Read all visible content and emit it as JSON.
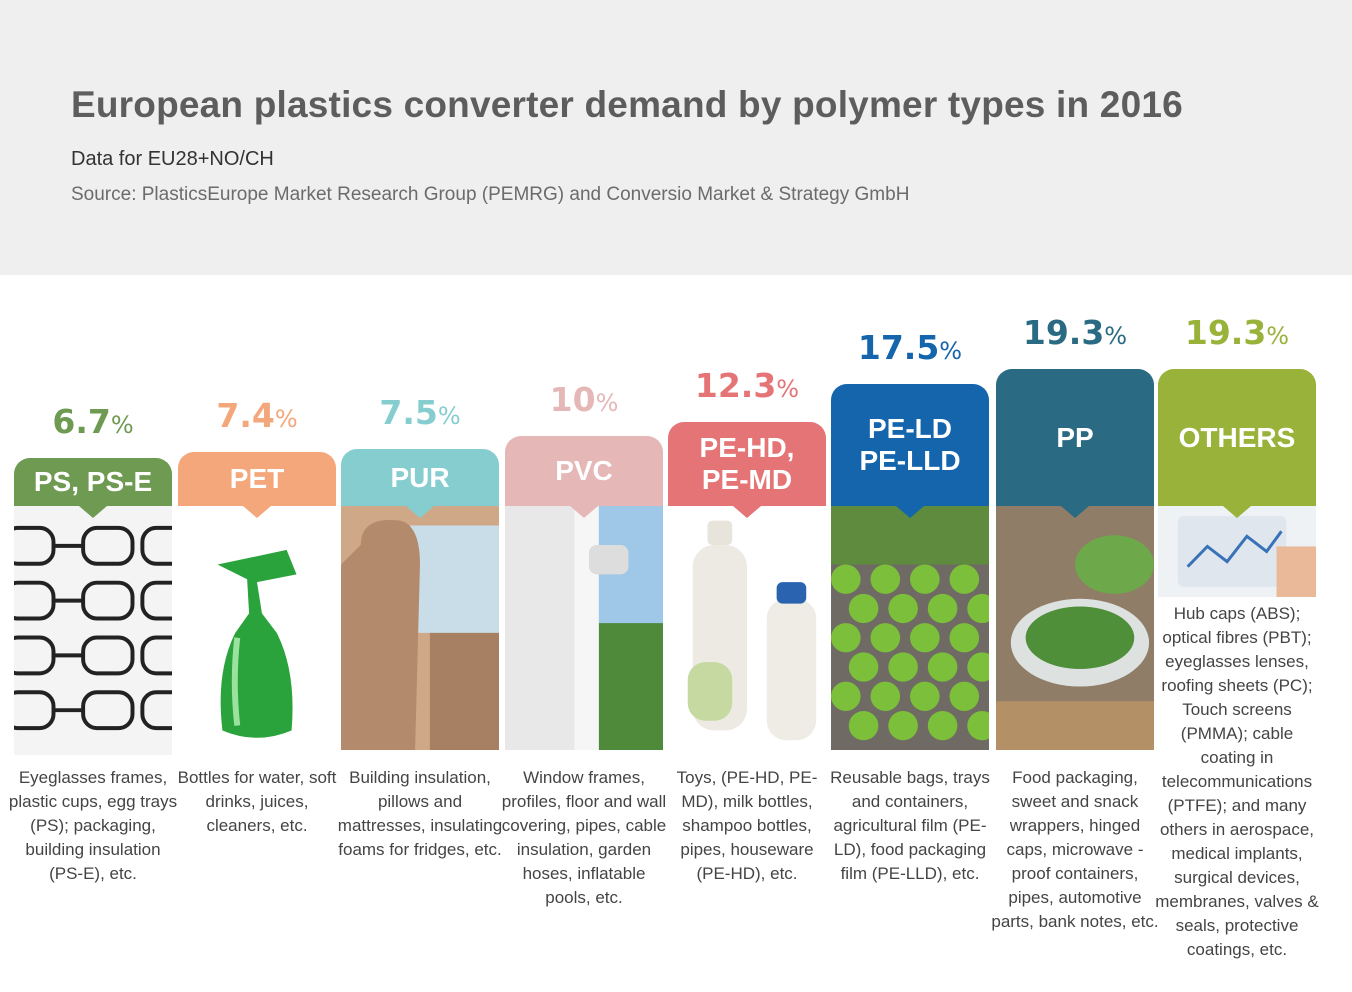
{
  "header": {
    "title": "European plastics converter demand by polymer types in 2016",
    "subtitle": "Data for EU28+NO/CH",
    "source": "Source: PlasticsEurope Market Research Group (PEMRG) and Conversio Market & Strategy GmbH"
  },
  "chart_data": {
    "type": "bar",
    "title": "European plastics converter demand by polymer types in 2016",
    "unit": "%",
    "categories": [
      "PS, PS-E",
      "PET",
      "PUR",
      "PVC",
      "PE-HD, PE-MD",
      "PE-LD PE-LLD",
      "PP",
      "OTHERS"
    ],
    "values": [
      6.7,
      7.4,
      7.5,
      10,
      12.3,
      17.5,
      19.3,
      19.3
    ],
    "value_labels": [
      "6.7",
      "7.4",
      "7.5",
      "10",
      "12.3",
      "17.5",
      "19.3",
      "19.3"
    ],
    "colors": [
      "#6e9a52",
      "#f3a77b",
      "#86cdd0",
      "#e5b7b7",
      "#e57477",
      "#1565ad",
      "#2a6a82",
      "#98b23a"
    ],
    "descriptions": [
      "Eyeglasses frames, plastic cups, egg trays (PS); packaging, building insulation (PS-E), etc.",
      "Bottles for water, soft drinks, juices, cleaners, etc.",
      "Building insulation, pillows and mattresses, insulating foams for fridges, etc.",
      "Window frames, profiles, floor and wall covering, pipes, cable insulation, garden hoses, inflatable pools, etc.",
      "Toys, (PE-HD, PE-MD), milk bottles, shampoo bottles, pipes, houseware (PE-HD), etc.",
      "Reusable bags, trays and containers, agricultural film (PE-LD), food packaging film (PE-LLD), etc.",
      "Food packaging, sweet and snack wrappers, hinged caps, microwave - proof containers, pipes, automotive parts, bank notes, etc.",
      "Hub caps (ABS); optical fibres (PBT); eyeglasses lenses, roofing sheets (PC); Touch screens (PMMA); cable coating in telecommunications (PTFE); and many others in aerospace, medical implants, surgical devices, membranes, valves & seals, protective coatings, etc."
    ],
    "grid": false,
    "legend": "none"
  },
  "icons": [
    "eyeglasses-photo",
    "spray-bottle-photo",
    "car-seat-photo",
    "window-frame-photo",
    "milk-bottles-photo",
    "lettuce-field-photo",
    "salad-packaging-photo",
    "tablet-chart-photo"
  ]
}
